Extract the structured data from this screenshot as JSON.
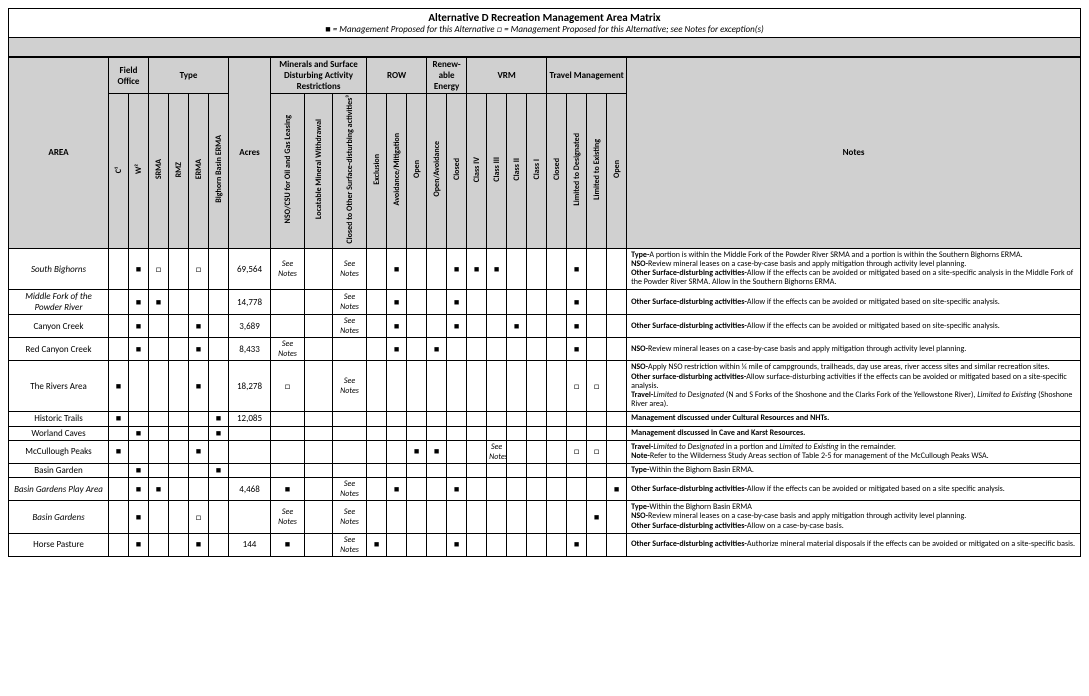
{
  "title": "Alternative D Recreation Management Area Matrix",
  "legend_filled": "■ = Management Proposed for this Alternative",
  "legend_open": "□ = Management Proposed for this Alternative; see Notes for exception(s)",
  "marks": {
    "filled": "■",
    "open": "□",
    "see_notes": "See Notes"
  },
  "group_headers": {
    "area": "AREA",
    "field_office": "Field Office",
    "type": "Type",
    "acres": "Acres",
    "minerals": "Minerals and Surface Disturbing Activity Restrictions",
    "row": "ROW",
    "renew": "Renew-able Energy",
    "vrm": "VRM",
    "travel": "Travel Management",
    "notes": "Notes"
  },
  "sub_headers": {
    "fo_c": "C¹",
    "fo_w": "W²",
    "srma": "SRMA",
    "rmz": "RMZ",
    "erma": "ERMA",
    "bberma": "Bighorn Basin ERMA",
    "nso": "NSO/CSU for Oil and Gas Leasing",
    "locmin": "Locatable Mineral Withdrawal",
    "closed_other": "Closed to Other Surface-disturbing activities³",
    "exclusion": "Exclusion",
    "avoidmit": "Avoidance/Mitigation",
    "row_open": "Open",
    "open_avoid": "Open/Avoidance",
    "re_closed": "Closed",
    "class4": "Class IV",
    "class3": "Class III",
    "class2": "Class II",
    "class1": "Class I",
    "tm_closed": "Closed",
    "tm_ltd_desig": "Limited to Designated",
    "tm_ltd_exist": "Limited to Existing",
    "tm_open": "Open"
  },
  "rows": [
    {
      "area": "South Bighorns",
      "italic": true,
      "fo_c": "",
      "fo_w": "■",
      "srma": "□",
      "rmz": "",
      "erma": "□",
      "bberma": "",
      "acres": "69,564",
      "nso": "See Notes",
      "locmin": "",
      "closed_other": "See Notes",
      "exclusion": "",
      "avoidmit": "■",
      "row_open": "",
      "open_avoid": "",
      "re_closed": "■",
      "class4": "■",
      "class3": "■",
      "class2": "",
      "class1": "",
      "tm_closed": "",
      "tm_ltd_desig": "■",
      "tm_ltd_exist": "",
      "tm_open": "",
      "notes": "<b>Type-</b>A portion is within the Middle Fork of the Powder River SRMA and a portion is within the Southern Bighorns ERMA.<br><b>NSO-</b>Review mineral leases on a case-by-case basis and apply mitigation through activity level planning.<br><b>Other Surface-disturbing activities-</b>Allow if the effects can be avoided or mitigated based on a site-specific analysis in the Middle Fork of the Powder River SRMA. Allow in the Southern Bighorns ERMA."
    },
    {
      "area": "Middle Fork of the Powder River",
      "italic": true,
      "fo_c": "",
      "fo_w": "■",
      "srma": "■",
      "rmz": "",
      "erma": "",
      "bberma": "",
      "acres": "14,778",
      "nso": "",
      "locmin": "",
      "closed_other": "See Notes",
      "exclusion": "",
      "avoidmit": "■",
      "row_open": "",
      "open_avoid": "",
      "re_closed": "■",
      "class4": "",
      "class3": "",
      "class2": "",
      "class1": "",
      "tm_closed": "",
      "tm_ltd_desig": "■",
      "tm_ltd_exist": "",
      "tm_open": "",
      "notes": "<b>Other Surface-disturbing activities-</b>Allow if the effects can be avoided or mitigated based on site-specific analysis."
    },
    {
      "area": "Canyon Creek",
      "fo_c": "",
      "fo_w": "■",
      "srma": "",
      "rmz": "",
      "erma": "■",
      "bberma": "",
      "acres": "3,689",
      "nso": "",
      "locmin": "",
      "closed_other": "See Notes",
      "exclusion": "",
      "avoidmit": "■",
      "row_open": "",
      "open_avoid": "",
      "re_closed": "■",
      "class4": "",
      "class3": "",
      "class2": "■",
      "class1": "",
      "tm_closed": "",
      "tm_ltd_desig": "■",
      "tm_ltd_exist": "",
      "tm_open": "",
      "notes": "<b>Other Surface-disturbing activities-</b>Allow if the effects can be avoided or mitigated based on site-specific analysis."
    },
    {
      "area": "Red Canyon Creek",
      "fo_c": "",
      "fo_w": "■",
      "srma": "",
      "rmz": "",
      "erma": "■",
      "bberma": "",
      "acres": "8,433",
      "nso": "See Notes",
      "locmin": "",
      "closed_other": "",
      "exclusion": "",
      "avoidmit": "■",
      "row_open": "",
      "open_avoid": "■",
      "re_closed": "",
      "class4": "",
      "class3": "",
      "class2": "",
      "class1": "",
      "tm_closed": "",
      "tm_ltd_desig": "■",
      "tm_ltd_exist": "",
      "tm_open": "",
      "notes": "<b>NSO-</b>Review mineral leases on a case-by-case basis and apply mitigation through activity level planning."
    },
    {
      "area": "The Rivers Area",
      "fo_c": "■",
      "fo_w": "",
      "srma": "",
      "rmz": "",
      "erma": "■",
      "bberma": "",
      "acres": "18,278",
      "nso": "□",
      "locmin": "",
      "closed_other": "See Notes",
      "exclusion": "",
      "avoidmit": "",
      "row_open": "",
      "open_avoid": "",
      "re_closed": "",
      "class4": "",
      "class3": "",
      "class2": "",
      "class1": "",
      "tm_closed": "",
      "tm_ltd_desig": "□",
      "tm_ltd_exist": "□",
      "tm_open": "",
      "notes": "<b>NSO-</b>Apply NSO restriction within ¼ mile of campgrounds, trailheads, day use areas, river access sites and similar recreation sites.<br><b>Other surface-disturbing activities-</b>Allow surface-disturbing activities if the effects can be avoided or mitigated based on a site-specific analysis.<br><b>Travel-</b><em>Limited to Designated</em> (N and S Forks of the Shoshone and the Clarks Fork of the Yellowstone River), <em>Limited to Existing</em> (Shoshone River area)."
    },
    {
      "area": "Historic Trails",
      "fo_c": "■",
      "fo_w": "",
      "srma": "",
      "rmz": "",
      "erma": "",
      "bberma": "■",
      "acres": "12,085",
      "nso": "",
      "locmin": "",
      "closed_other": "",
      "exclusion": "",
      "avoidmit": "",
      "row_open": "",
      "open_avoid": "",
      "re_closed": "",
      "class4": "",
      "class3": "",
      "class2": "",
      "class1": "",
      "tm_closed": "",
      "tm_ltd_desig": "",
      "tm_ltd_exist": "",
      "tm_open": "",
      "notes": "<b>Management discussed under Cultural Resources and NHTs.</b>"
    },
    {
      "area": "Worland Caves",
      "fo_c": "",
      "fo_w": "■",
      "srma": "",
      "rmz": "",
      "erma": "",
      "bberma": "■",
      "acres": "",
      "nso": "",
      "locmin": "",
      "closed_other": "",
      "exclusion": "",
      "avoidmit": "",
      "row_open": "",
      "open_avoid": "",
      "re_closed": "",
      "class4": "",
      "class3": "",
      "class2": "",
      "class1": "",
      "tm_closed": "",
      "tm_ltd_desig": "",
      "tm_ltd_exist": "",
      "tm_open": "",
      "notes": "<b>Management discussed in Cave and Karst Resources.</b>"
    },
    {
      "area": "McCullough Peaks",
      "fo_c": "■",
      "fo_w": "",
      "srma": "",
      "rmz": "",
      "erma": "■",
      "bberma": "",
      "acres": "",
      "nso": "",
      "locmin": "",
      "closed_other": "",
      "exclusion": "",
      "avoidmit": "",
      "row_open": "■",
      "open_avoid": "■",
      "re_closed": "",
      "class4": "",
      "class3": "See Notes",
      "class2": "",
      "class1": "",
      "tm_closed": "",
      "tm_ltd_desig": "□",
      "tm_ltd_exist": "□",
      "tm_open": "",
      "notes": "<b>Travel-</b><em>Limited to Designated</em> in a portion and <em>Limited to Existing</em> in the remainder.<br><b>Note-</b>Refer to the Wilderness Study Areas section of Table 2-5 for management of the McCullough Peaks WSA."
    },
    {
      "area": "Basin Garden",
      "fo_c": "",
      "fo_w": "■",
      "srma": "",
      "rmz": "",
      "erma": "",
      "bberma": "■",
      "acres": "",
      "nso": "",
      "locmin": "",
      "closed_other": "",
      "exclusion": "",
      "avoidmit": "",
      "row_open": "",
      "open_avoid": "",
      "re_closed": "",
      "class4": "",
      "class3": "",
      "class2": "",
      "class1": "",
      "tm_closed": "",
      "tm_ltd_desig": "",
      "tm_ltd_exist": "",
      "tm_open": "",
      "notes": "<b>Type-</b>Within the Bighorn Basin ERMA."
    },
    {
      "area": "Basin Gardens Play Area",
      "italic": true,
      "fo_c": "",
      "fo_w": "■",
      "srma": "■",
      "rmz": "",
      "erma": "",
      "bberma": "",
      "acres": "4,468",
      "nso": "■",
      "locmin": "",
      "closed_other": "See Notes",
      "exclusion": "",
      "avoidmit": "■",
      "row_open": "",
      "open_avoid": "",
      "re_closed": "■",
      "class4": "",
      "class3": "",
      "class2": "",
      "class1": "",
      "tm_closed": "",
      "tm_ltd_desig": "",
      "tm_ltd_exist": "",
      "tm_open": "■",
      "notes": "<b>Other Surface-disturbing activities-</b>Allow if the effects can be avoided or mitigated based on a site specific analysis."
    },
    {
      "area": "Basin Gardens",
      "italic": true,
      "fo_c": "",
      "fo_w": "■",
      "srma": "",
      "rmz": "",
      "erma": "□",
      "bberma": "",
      "acres": "",
      "nso": "See Notes",
      "locmin": "",
      "closed_other": "See Notes",
      "exclusion": "",
      "avoidmit": "",
      "row_open": "",
      "open_avoid": "",
      "re_closed": "",
      "class4": "",
      "class3": "",
      "class2": "",
      "class1": "",
      "tm_closed": "",
      "tm_ltd_desig": "",
      "tm_ltd_exist": "■",
      "tm_open": "",
      "notes": "<b>Type-</b>Within the Bighorn Basin ERMA<br><b>NSO-</b>Review mineral leases on a case-by-case basis and apply mitigation through activity level planning.<br><b>Other Surface-disturbing activities-</b>Allow on a case-by-case basis."
    },
    {
      "area": "Horse Pasture",
      "fo_c": "",
      "fo_w": "■",
      "srma": "",
      "rmz": "",
      "erma": "■",
      "bberma": "",
      "acres": "144",
      "nso": "■",
      "locmin": "",
      "closed_other": "See Notes",
      "exclusion": "■",
      "avoidmit": "",
      "row_open": "",
      "open_avoid": "",
      "re_closed": "■",
      "class4": "",
      "class3": "",
      "class2": "",
      "class1": "",
      "tm_closed": "",
      "tm_ltd_desig": "■",
      "tm_ltd_exist": "",
      "tm_open": "",
      "notes": "<b>Other Surface-disturbing activities-</b>Authorize mineral material disposals if the effects can be avoided or mitigated on a site-specific basis."
    }
  ],
  "col_order": [
    "fo_c",
    "fo_w",
    "srma",
    "rmz",
    "erma",
    "bberma",
    "acres",
    "nso",
    "locmin",
    "closed_other",
    "exclusion",
    "avoidmit",
    "row_open",
    "open_avoid",
    "re_closed",
    "class4",
    "class3",
    "class2",
    "class1",
    "tm_closed",
    "tm_ltd_desig",
    "tm_ltd_exist",
    "tm_open"
  ]
}
